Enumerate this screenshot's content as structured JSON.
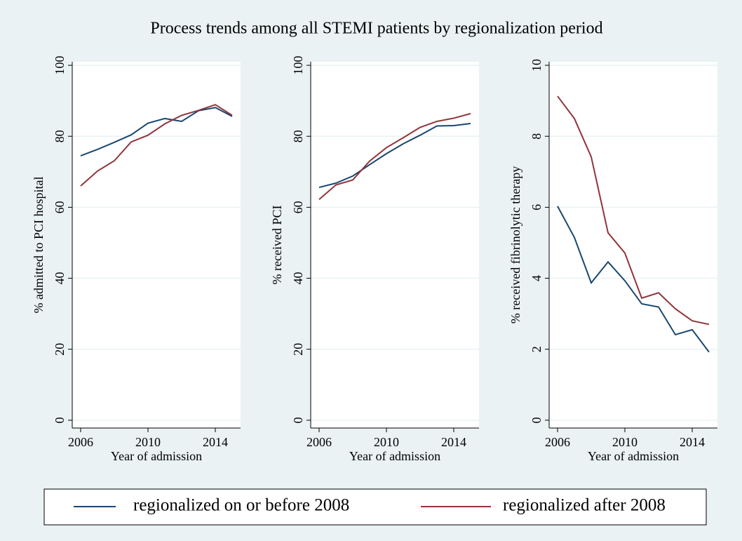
{
  "title": "Process trends among all STEMI patients by regionalization period",
  "chart_data": [
    {
      "type": "line",
      "x_label": "Year of admission",
      "y_label": "% admitted to PCI hospital",
      "x": [
        2006,
        2007,
        2008,
        2009,
        2010,
        2011,
        2012,
        2013,
        2014,
        2015
      ],
      "series": [
        {
          "name": "regionalized on or before 2008",
          "color": "#1a476f",
          "values": [
            74.5,
            76.3,
            78.3,
            80.4,
            83.7,
            85.0,
            84.2,
            87.2,
            88.1,
            85.6
          ]
        },
        {
          "name": "regionalized after 2008",
          "color": "#90353b",
          "values": [
            66.0,
            70.2,
            73.1,
            78.4,
            80.3,
            83.5,
            85.9,
            87.3,
            88.9,
            85.9
          ]
        }
      ],
      "xlim": [
        2005.5,
        2015.5
      ],
      "xticks": [
        2006,
        2010,
        2014
      ],
      "ylim": [
        -2.2,
        101
      ],
      "yticks": [
        0,
        20,
        40,
        60,
        80,
        100
      ],
      "grid": true
    },
    {
      "type": "line",
      "x_label": "Year of admission",
      "y_label": "% received PCI",
      "x": [
        2006,
        2007,
        2008,
        2009,
        2010,
        2011,
        2012,
        2013,
        2014,
        2015
      ],
      "series": [
        {
          "name": "regionalized on or before 2008",
          "color": "#1a476f",
          "values": [
            65.6,
            66.8,
            68.8,
            72.0,
            75.1,
            77.9,
            80.3,
            82.9,
            83.0,
            83.6
          ]
        },
        {
          "name": "regionalized after 2008",
          "color": "#90353b",
          "values": [
            62.2,
            66.3,
            67.7,
            73.0,
            76.8,
            79.6,
            82.5,
            84.2,
            85.1,
            86.4
          ]
        }
      ],
      "xlim": [
        2005.5,
        2015.5
      ],
      "xticks": [
        2006,
        2010,
        2014
      ],
      "ylim": [
        -2.2,
        101
      ],
      "yticks": [
        0,
        20,
        40,
        60,
        80,
        100
      ],
      "grid": true
    },
    {
      "type": "line",
      "x_label": "Year of admission",
      "y_label": "% received fibrinolytic therapy",
      "x": [
        2006,
        2007,
        2008,
        2009,
        2010,
        2011,
        2012,
        2013,
        2014,
        2015
      ],
      "series": [
        {
          "name": "regionalized on or before 2008",
          "color": "#1a476f",
          "values": [
            6.03,
            5.15,
            3.87,
            4.46,
            3.93,
            3.28,
            3.19,
            2.41,
            2.55,
            1.92
          ]
        },
        {
          "name": "regionalized after 2008",
          "color": "#90353b",
          "values": [
            9.13,
            8.5,
            7.42,
            5.28,
            4.71,
            3.44,
            3.59,
            3.14,
            2.8,
            2.7
          ]
        }
      ],
      "xlim": [
        2005.5,
        2015.5
      ],
      "xticks": [
        2006,
        2010,
        2014
      ],
      "ylim": [
        -0.22,
        10.1
      ],
      "yticks": [
        0,
        2,
        4,
        6,
        8,
        10
      ],
      "grid": true
    }
  ]
}
